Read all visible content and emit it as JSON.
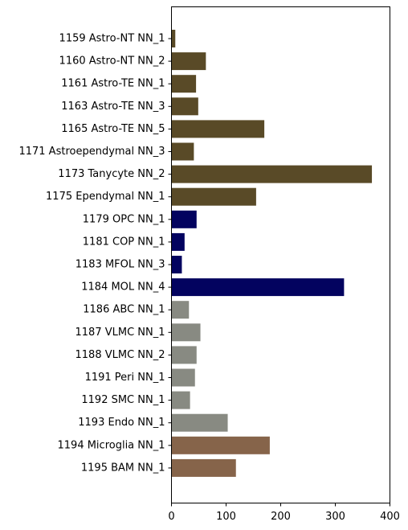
{
  "chart_data": {
    "type": "bar",
    "orientation": "horizontal",
    "title": "",
    "xlabel": "",
    "ylabel": "",
    "xlim": [
      0,
      400
    ],
    "x_ticks": [
      0,
      100,
      200,
      300,
      400
    ],
    "grid": false,
    "legend": "none",
    "categories": [
      "1159 Astro-NT NN_1",
      "1160 Astro-NT NN_2",
      "1161 Astro-TE NN_1",
      "1163 Astro-TE NN_3",
      "1165 Astro-TE NN_5",
      "1171 Astroependymal NN_3",
      "1173 Tanycyte NN_2",
      "1175 Ependymal NN_1",
      "1179 OPC NN_1",
      "1181 COP NN_1",
      "1183 MFOL NN_3",
      "1184 MOL NN_4",
      "1186 ABC NN_1",
      "1187 VLMC NN_1",
      "1188 VLMC NN_2",
      "1191 Peri NN_1",
      "1192 SMC NN_1",
      "1193 Endo NN_1",
      "1194 Microglia NN_1",
      "1195 BAM NN_1"
    ],
    "values": [
      7,
      63,
      45,
      49,
      170,
      41,
      367,
      155,
      46,
      24,
      19,
      316,
      32,
      53,
      46,
      43,
      34,
      103,
      180,
      118
    ],
    "colors": [
      "#594a27",
      "#594a27",
      "#594a27",
      "#594a27",
      "#594a27",
      "#594a27",
      "#594a27",
      "#594a27",
      "#03035f",
      "#03035f",
      "#03035f",
      "#03035f",
      "#888a82",
      "#888a82",
      "#888a82",
      "#888a82",
      "#888a82",
      "#888a82",
      "#86644a",
      "#86644a"
    ]
  }
}
